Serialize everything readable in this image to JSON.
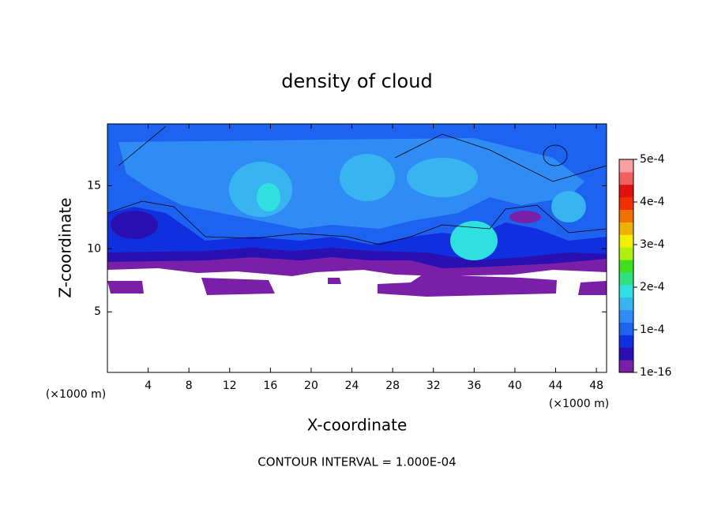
{
  "chart_data": {
    "type": "contour",
    "title": "density of cloud",
    "x_label": "X-coordinate",
    "y_label": "Z-coordinate",
    "unit_labels": [
      "(×1000 m)",
      "(×1000 m)"
    ],
    "footer": "CONTOUR INTERVAL = 1.000E-04",
    "xlim": [
      0,
      49
    ],
    "xticks": [
      4,
      8,
      12,
      16,
      20,
      24,
      28,
      32,
      36,
      40,
      44,
      48
    ],
    "ylim": [
      0.2,
      19.9
    ],
    "yticks": [
      5,
      10,
      15
    ],
    "colorbar_lim": [
      0,
      0.0005
    ],
    "colorbar_ticks": [
      {
        "value": 1e-16,
        "label": "1e-16"
      },
      {
        "value": 0.0001,
        "label": "1e-4"
      },
      {
        "value": 0.0002,
        "label": "2e-4"
      },
      {
        "value": 0.0003,
        "label": "3e-4"
      },
      {
        "value": 0.0004,
        "label": "4e-4"
      },
      {
        "value": 0.0005,
        "label": "5e-4"
      }
    ],
    "colorbar_colors": [
      "#7a1fa8",
      "#2a10b0",
      "#1030e0",
      "#1e62f0",
      "#2f8cf4",
      "#38b4f0",
      "#30e0e0",
      "#30e080",
      "#40e020",
      "#b0f010",
      "#f0f000",
      "#f0b000",
      "#f07000",
      "#f03000",
      "#e01010",
      "#f06060",
      "#f8a0a0"
    ]
  }
}
